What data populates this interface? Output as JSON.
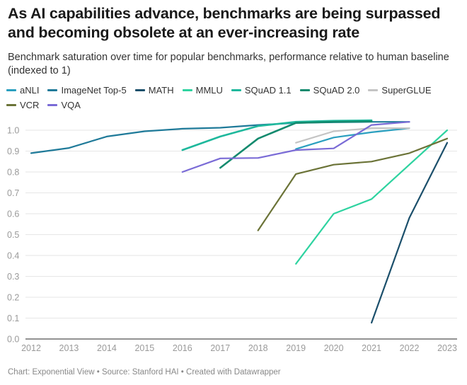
{
  "header": {
    "title": "As AI capabilities advance, benchmarks are being surpassed and becoming obsolete at an ever-increasing rate",
    "subtitle": "Benchmark saturation over time for popular benchmarks, performance relative to human baseline (indexed to 1)"
  },
  "footer": {
    "text": "Chart: Exponential View • Source: Stanford HAI • Created with Datawrapper"
  },
  "chart_data": {
    "type": "line",
    "title": "As AI capabilities advance, benchmarks are being surpassed and becoming obsolete at an ever-increasing rate",
    "subtitle": "Benchmark saturation over time for popular benchmarks, performance relative to human baseline (indexed to 1)",
    "xlabel": "",
    "ylabel": "",
    "x": [
      2012,
      2013,
      2014,
      2015,
      2016,
      2017,
      2018,
      2019,
      2020,
      2021,
      2022,
      2023
    ],
    "xlim": [
      2012,
      2023
    ],
    "ylim": [
      0,
      1.0
    ],
    "yticks": [
      "0.0",
      "0.1",
      "0.2",
      "0.3",
      "0.4",
      "0.5",
      "0.6",
      "0.7",
      "0.8",
      "0.9",
      "1.0"
    ],
    "xticks": [
      "2012",
      "2013",
      "2014",
      "2015",
      "2016",
      "2017",
      "2018",
      "2019",
      "2020",
      "2021",
      "2022",
      "2023"
    ],
    "grid": true,
    "legend": "top",
    "series": [
      {
        "name": "aNLI",
        "color": "#2a9fbf",
        "points": [
          [
            2019,
            0.91
          ],
          [
            2020,
            0.965
          ],
          [
            2021,
            0.99
          ],
          [
            2022,
            1.01
          ]
        ]
      },
      {
        "name": "ImageNet Top-5",
        "color": "#1f7a99",
        "points": [
          [
            2012,
            0.89
          ],
          [
            2013,
            0.915
          ],
          [
            2014,
            0.97
          ],
          [
            2015,
            0.995
          ],
          [
            2016,
            1.007
          ],
          [
            2017,
            1.012
          ],
          [
            2018,
            1.025
          ],
          [
            2019,
            1.035
          ],
          [
            2020,
            1.038
          ],
          [
            2021,
            1.04
          ],
          [
            2022,
            1.04
          ]
        ]
      },
      {
        "name": "MATH",
        "color": "#1b4f6b",
        "points": [
          [
            2021,
            0.078
          ],
          [
            2022,
            0.58
          ],
          [
            2023,
            0.94
          ]
        ]
      },
      {
        "name": "MMLU",
        "color": "#2ed3a0",
        "points": [
          [
            2019,
            0.36
          ],
          [
            2020,
            0.6
          ],
          [
            2021,
            0.67
          ],
          [
            2023,
            1.0
          ]
        ]
      },
      {
        "name": "SQuAD 1.1",
        "color": "#1eb89c",
        "points": [
          [
            2016,
            0.905
          ],
          [
            2017,
            0.97
          ],
          [
            2018,
            1.02
          ],
          [
            2019,
            1.04
          ],
          [
            2020,
            1.045
          ],
          [
            2021,
            1.047
          ]
        ]
      },
      {
        "name": "SQuAD 2.0",
        "color": "#138a6e",
        "points": [
          [
            2017,
            0.82
          ],
          [
            2018,
            0.96
          ],
          [
            2019,
            1.035
          ],
          [
            2020,
            1.04
          ],
          [
            2021,
            1.042
          ]
        ]
      },
      {
        "name": "SuperGLUE",
        "color": "#c4c4c4",
        "points": [
          [
            2019,
            0.94
          ],
          [
            2020,
            0.995
          ],
          [
            2021,
            1.01
          ],
          [
            2022,
            1.01
          ]
        ]
      },
      {
        "name": "VCR",
        "color": "#6b7337",
        "points": [
          [
            2018,
            0.52
          ],
          [
            2019,
            0.79
          ],
          [
            2020,
            0.835
          ],
          [
            2021,
            0.85
          ],
          [
            2022,
            0.89
          ],
          [
            2023,
            0.96
          ]
        ]
      },
      {
        "name": "VQA",
        "color": "#7a6bd6",
        "points": [
          [
            2016,
            0.8
          ],
          [
            2017,
            0.865
          ],
          [
            2018,
            0.867
          ],
          [
            2019,
            0.905
          ],
          [
            2020,
            0.913
          ],
          [
            2021,
            1.025
          ],
          [
            2022,
            1.04
          ]
        ]
      }
    ]
  }
}
